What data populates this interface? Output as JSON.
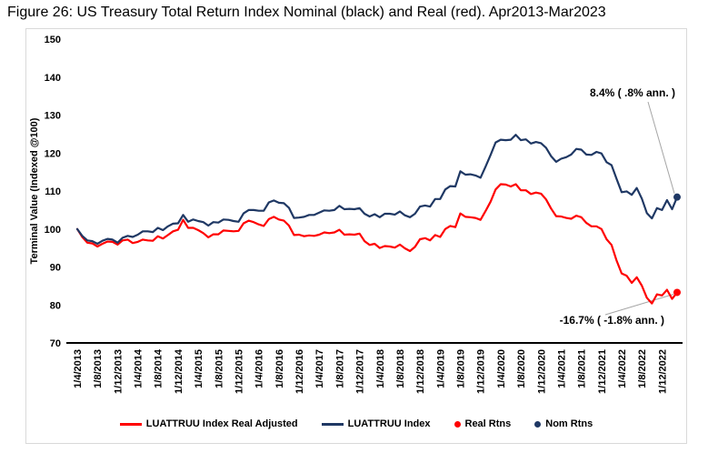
{
  "title": "Figure 26: US Treasury Total Return Index Nominal (black) and Real (red). Apr2013-Mar2023",
  "colors": {
    "nominal": "#1F3864",
    "real": "#FF0000",
    "axis": "#000000",
    "frame_border": "#D9D9D9",
    "leader_line": "#A6A6A6"
  },
  "legend": {
    "items": [
      {
        "label": "LUATTRUU Index Real Adjusted",
        "swatch": "line",
        "color": "#FF0000"
      },
      {
        "label": "LUATTRUU Index",
        "swatch": "line",
        "color": "#1F3864"
      },
      {
        "label": "Real Rtns",
        "swatch": "dot",
        "color": "#FF0000"
      },
      {
        "label": "Nom Rtns",
        "swatch": "dot",
        "color": "#1F3864"
      }
    ]
  },
  "chart_data": {
    "type": "line",
    "title": "Figure 26: US Treasury Total Return Index Nominal (black) and Real (red). Apr2013-Mar2023",
    "xlabel": "",
    "ylabel": "Terminal Value (Indexed @100)",
    "ylim": [
      70,
      150
    ],
    "yticks": [
      150,
      140,
      130,
      120,
      110,
      100,
      90,
      80,
      70
    ],
    "grid": false,
    "legend_position": "bottom",
    "x_unit": "monthly, Apr 2013 - Mar 2023 (120 points)",
    "xtick_labels": [
      "1/4/2013",
      "1/8/2013",
      "1/12/2013",
      "1/4/2014",
      "1/8/2014",
      "1/12/2014",
      "1/4/2015",
      "1/8/2015",
      "1/12/2015",
      "1/4/2016",
      "1/8/2016",
      "1/12/2016",
      "1/4/2017",
      "1/8/2017",
      "1/12/2017",
      "1/4/2018",
      "1/8/2018",
      "1/12/2018",
      "1/4/2019",
      "1/8/2019",
      "1/12/2019",
      "1/4/2020",
      "1/8/2020",
      "1/12/2020",
      "1/4/2021",
      "1/8/2021",
      "1/12/2021",
      "1/4/2022",
      "1/8/2022",
      "1/12/2022"
    ],
    "xtick_month_indices": [
      0,
      4,
      8,
      12,
      16,
      20,
      24,
      28,
      32,
      36,
      40,
      44,
      48,
      52,
      56,
      60,
      64,
      68,
      72,
      76,
      80,
      84,
      88,
      92,
      96,
      100,
      104,
      108,
      112,
      116
    ],
    "series": [
      {
        "name": "LUATTRUU Index Real Adjusted",
        "color": "#FF0000",
        "values": [
          100,
          97.9,
          96.4,
          96.2,
          95.4,
          96.1,
          96.7,
          96.6,
          95.9,
          97,
          97.2,
          96.3,
          96.6,
          97.2,
          97,
          96.9,
          98.1,
          97.5,
          98.4,
          99.4,
          99.8,
          102.4,
          100.3,
          100.3,
          99.7,
          98.9,
          97.8,
          98.6,
          98.6,
          99.6,
          99.5,
          99.4,
          99.5,
          101.5,
          102.2,
          101.8,
          101.2,
          100.8,
          102.6,
          103.2,
          102.5,
          102.2,
          100.9,
          98.4,
          98.5,
          98.1,
          98.3,
          98.2,
          98.5,
          99.1,
          98.9,
          99.1,
          99.8,
          98.5,
          98.6,
          98.5,
          98.8,
          96.8,
          95.8,
          96.1,
          95,
          95.5,
          95.4,
          95.1,
          95.9,
          94.9,
          94.2,
          95.3,
          97.3,
          97.6,
          97,
          98.4,
          97.9,
          100,
          100.8,
          100.5,
          104.1,
          103.2,
          103.1,
          102.9,
          102.4,
          104.7,
          107.2,
          110.4,
          111.8,
          111.7,
          111.2,
          111.8,
          110.2,
          110.2,
          109.2,
          109.6,
          109.3,
          107.8,
          105.4,
          103.4,
          103.3,
          102.9,
          102.7,
          103.5,
          103.1,
          101.6,
          100.7,
          100.7,
          100,
          97.3,
          95.8,
          91.7,
          88.3,
          87.7,
          85.8,
          87.3,
          85.1,
          81.9,
          80.4,
          82.8,
          82.5,
          84,
          81.6,
          83.3
        ]
      },
      {
        "name": "LUATTRUU Index",
        "color": "#1F3864",
        "values": [
          100,
          98.2,
          97,
          96.8,
          96.1,
          96.9,
          97.4,
          97.2,
          96.4,
          97.7,
          98.2,
          97.9,
          98.5,
          99.4,
          99.4,
          99.2,
          100.3,
          99.7,
          100.7,
          101.4,
          101.5,
          103.7,
          101.9,
          102.5,
          102.1,
          101.8,
          100.9,
          101.8,
          101.7,
          102.5,
          102.4,
          102.1,
          101.9,
          104.1,
          105,
          105,
          104.8,
          104.8,
          107,
          107.5,
          106.9,
          106.8,
          105.6,
          102.9,
          103,
          103.2,
          103.7,
          103.7,
          104.3,
          104.9,
          104.8,
          105,
          106.1,
          105.2,
          105.3,
          105.2,
          105.5,
          104,
          103.3,
          103.9,
          103.1,
          104,
          104,
          103.8,
          104.6,
          103.6,
          103.1,
          104,
          105.9,
          106.2,
          105.9,
          107.9,
          107.9,
          110.4,
          111.3,
          111.2,
          115.2,
          114.3,
          114.4,
          114.1,
          113.5,
          116.4,
          119.5,
          122.8,
          123.5,
          123.4,
          123.5,
          124.8,
          123.4,
          123.6,
          122.5,
          122.9,
          122.6,
          121.4,
          119.2,
          117.7,
          118.5,
          118.9,
          119.6,
          121.1,
          120.9,
          119.6,
          119.5,
          120.3,
          119.9,
          117.6,
          116.8,
          113.2,
          109.7,
          109.9,
          109,
          110.8,
          108,
          104.2,
          102.8,
          105.5,
          105,
          107.6,
          105.2,
          108.4
        ]
      }
    ],
    "end_markers": [
      {
        "name": "Real Rtns",
        "color": "#FF0000",
        "value": 83.3
      },
      {
        "name": "Nom Rtns",
        "color": "#1F3864",
        "value": 108.4
      }
    ],
    "annotations": [
      {
        "text": "8.4% ( .8% ann. )",
        "series": "LUATTRUU Index",
        "position": "top-right"
      },
      {
        "text": "-16.7% ( -1.8% ann. )",
        "series": "LUATTRUU Index Real Adjusted",
        "position": "bottom-right"
      }
    ]
  }
}
